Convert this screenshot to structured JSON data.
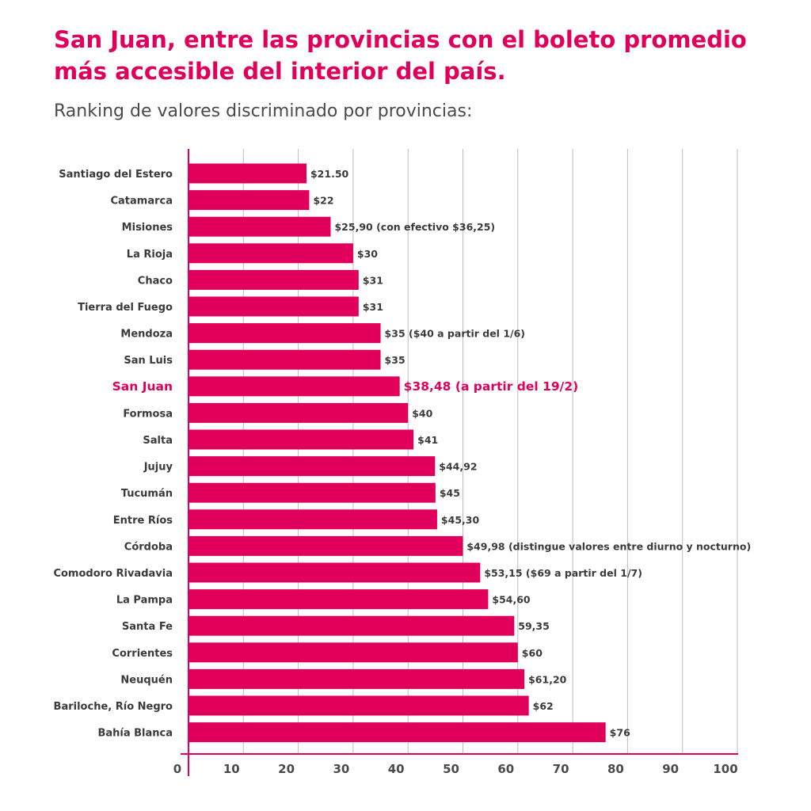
{
  "title_lines": [
    "San Juan, entre las provincias con el boleto promedio",
    "más accesible del interior del país."
  ],
  "subtitle": "Ranking de valores discriminado por provincias:",
  "colors": {
    "bar": "#e0005c",
    "highlight_text": "#e0005c",
    "text": "#3a3a3a",
    "grid": "#bdbdbd"
  },
  "chart_data": {
    "type": "bar",
    "orientation": "horizontal",
    "title": "San Juan, entre las provincias con el boleto promedio más accesible del interior del país.",
    "subtitle": "Ranking de valores discriminado por provincias:",
    "xlabel": "",
    "ylabel": "",
    "xlim": [
      0,
      100
    ],
    "xticks": [
      0,
      10,
      20,
      30,
      40,
      50,
      60,
      70,
      80,
      90,
      100
    ],
    "grid": "vertical",
    "highlight": "San Juan",
    "categories": [
      "Santiago del Estero",
      "Catamarca",
      "Misiones",
      "La Rioja",
      "Chaco",
      "Tierra del Fuego",
      "Mendoza",
      "San Luis",
      "San Juan",
      "Formosa",
      "Salta",
      "Jujuy",
      "Tucumán",
      "Entre Ríos",
      "Córdoba",
      "Comodoro Rivadavia",
      "La Pampa",
      "Santa Fe",
      "Corrientes",
      "Neuquén",
      "Bariloche, Río Negro",
      "Bahía Blanca"
    ],
    "values": [
      21.5,
      22,
      25.9,
      30,
      31,
      31,
      35,
      35,
      38.48,
      40,
      41,
      44.92,
      45,
      45.3,
      49.98,
      53.15,
      54.6,
      59.35,
      60,
      61.2,
      62,
      76
    ],
    "value_labels": [
      "$21.50",
      "$22",
      "$25,90 (con efectivo $36,25)",
      "$30",
      "$31",
      "$31",
      "$35 ($40 a partir del 1/6)",
      "$35",
      "$38,48 (a partir del 19/2)",
      "$40",
      "$41",
      "$44,92",
      "$45",
      "$45,30",
      "$49,98 (distingue valores entre diurno y nocturno)",
      "$53,15 ($69 a partir del 1/7)",
      "$54,60",
      "59,35",
      "$60",
      "$61,20",
      "$62",
      "$76"
    ]
  }
}
